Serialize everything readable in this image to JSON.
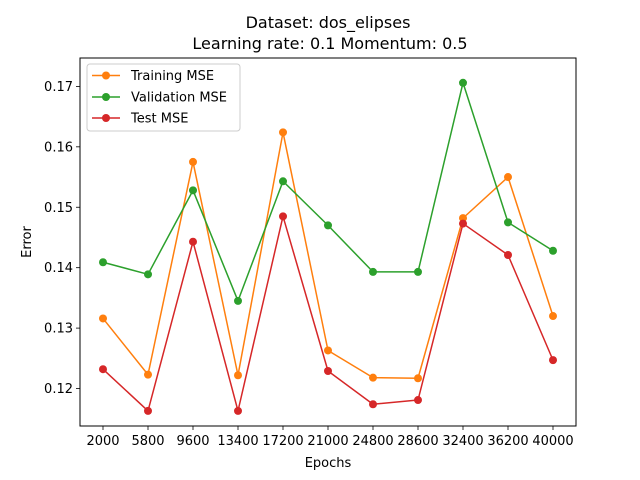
{
  "chart_data": {
    "type": "line",
    "title_line1": "Dataset: dos_elipses",
    "title_line2": "Learning rate: 0.1  Momentum: 0.5",
    "xlabel": "Epochs",
    "ylabel": "Error",
    "categories": [
      "2000",
      "5800",
      "9600",
      "13400",
      "17200",
      "21000",
      "24800",
      "28600",
      "32400",
      "36200",
      "40000"
    ],
    "ylim": [
      0.1138,
      0.1747
    ],
    "yticks": [
      0.12,
      0.13,
      0.14,
      0.15,
      0.16,
      0.17
    ],
    "ytick_labels": [
      "0.12",
      "0.13",
      "0.14",
      "0.15",
      "0.16",
      "0.17"
    ],
    "grid": false,
    "legend_position": "top-left",
    "series": [
      {
        "name": "Training MSE",
        "color": "#ff7f0e",
        "values": [
          0.1316,
          0.1223,
          0.1575,
          0.1222,
          0.1624,
          0.1263,
          0.1218,
          0.1217,
          0.1482,
          0.155,
          0.132
        ]
      },
      {
        "name": "Validation MSE",
        "color": "#2ca02c",
        "values": [
          0.1409,
          0.1389,
          0.1528,
          0.1345,
          0.1543,
          0.147,
          0.1393,
          0.1393,
          0.1706,
          0.1475,
          0.1428
        ]
      },
      {
        "name": "Test MSE",
        "color": "#d62728",
        "values": [
          0.1232,
          0.1163,
          0.1443,
          0.1163,
          0.1485,
          0.1229,
          0.1174,
          0.1181,
          0.1473,
          0.1421,
          0.1247
        ]
      }
    ]
  }
}
